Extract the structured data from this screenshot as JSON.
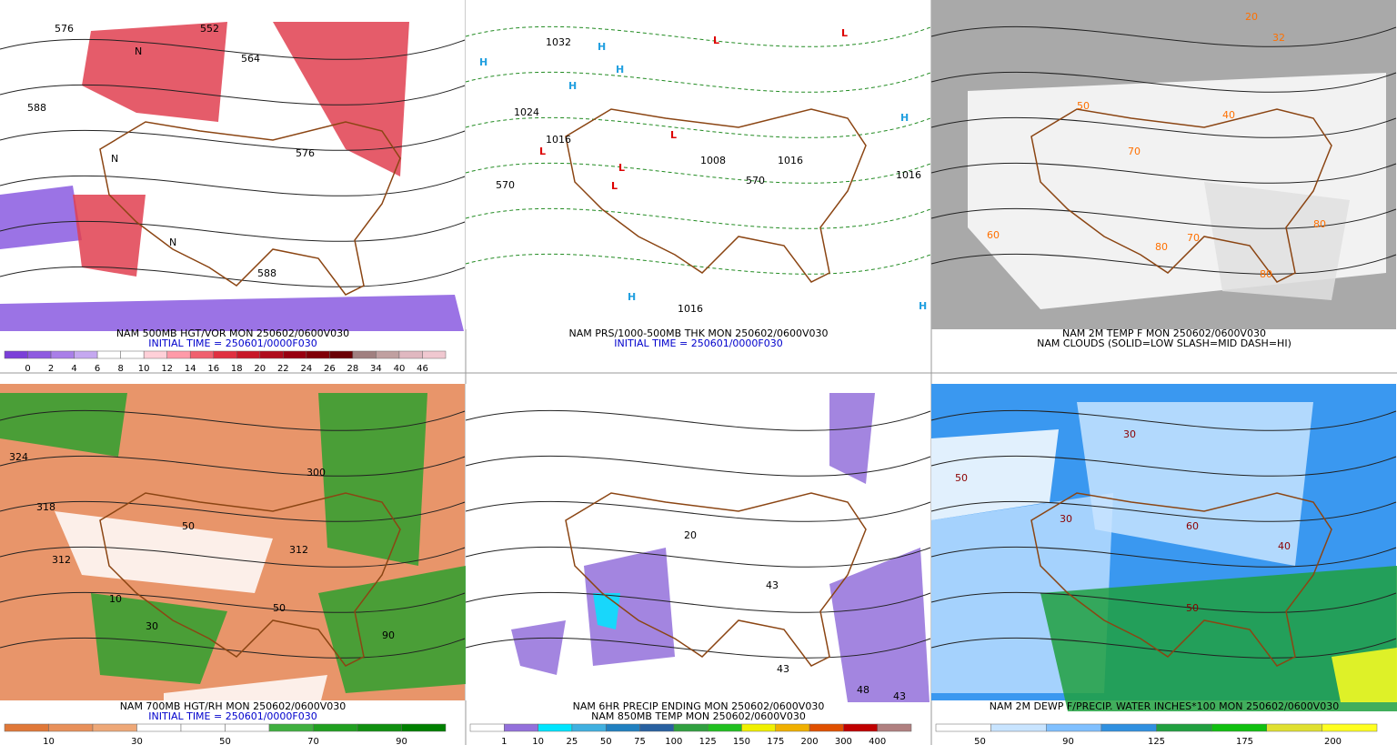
{
  "panels": [
    {
      "caption": [
        "NAM 500MB HGT/VOR MON 250602/0600V030",
        "INITIAL TIME = 250601/0000F030"
      ],
      "caption_colors": [
        "#000000",
        "#0000cc"
      ],
      "colorbar": {
        "labels": [
          "0",
          "2",
          "4",
          "6",
          "8",
          "10",
          "12",
          "14",
          "16",
          "18",
          "20",
          "22",
          "24",
          "26",
          "28",
          "34",
          "40",
          "46"
        ],
        "colors": [
          "#7b3fd8",
          "#8e5ae0",
          "#a97fe8",
          "#c5a8f0",
          "#ffffff",
          "#ffffff",
          "#ffd0d8",
          "#ff9aa8",
          "#f0606e",
          "#e03040",
          "#c81828",
          "#b00c1c",
          "#980010",
          "#800008",
          "#6a0004",
          "#a08080",
          "#c0a0a0",
          "#e0b8c0",
          "#f0c8d0"
        ]
      },
      "map_labels": [
        "576",
        "588",
        "564",
        "552",
        "576",
        "588",
        "N",
        "N",
        "N"
      ],
      "background": "#ffffff"
    },
    {
      "caption": [
        "NAM PRS/1000-500MB THK MON 250602/0600V030",
        "INITIAL TIME = 250601/0000F030"
      ],
      "caption_colors": [
        "#000000",
        "#0000cc"
      ],
      "map_labels": [
        "1032",
        "1024",
        "1016",
        "1008",
        "1016",
        "1016",
        "1016",
        "570",
        "570",
        "H",
        "H",
        "H",
        "H",
        "H",
        "H",
        "H",
        "L",
        "L",
        "L",
        "L",
        "L",
        "L"
      ],
      "background": "#ffffff"
    },
    {
      "caption": [
        "NAM 2M TEMP F MON 250602/0600V030",
        "NAM CLOUDS (SOLID=LOW SLASH=MID DASH=HI)"
      ],
      "caption_colors": [
        "#000000",
        "#000000"
      ],
      "map_labels": [
        "60",
        "70",
        "80",
        "70",
        "80",
        "80",
        "50",
        "40",
        "32",
        "20"
      ],
      "background": "#a9a9a9"
    },
    {
      "caption": [
        "NAM 700MB HGT/RH MON 250602/0600V030",
        "INITIAL TIME = 250601/0000F030"
      ],
      "caption_colors": [
        "#000000",
        "#0000cc"
      ],
      "colorbar": {
        "labels": [
          "10",
          "30",
          "50",
          "70",
          "90"
        ],
        "colors": [
          "#e07838",
          "#e8905a",
          "#eea878",
          "#ffffff",
          "#ffffff",
          "#ffffff",
          "#40b040",
          "#20a020",
          "#109010",
          "#008000"
        ]
      },
      "map_labels": [
        "324",
        "318",
        "312",
        "300",
        "312",
        "10",
        "30",
        "50",
        "90",
        "50"
      ],
      "background": "#e8956a"
    },
    {
      "caption": [
        "NAM 6HR PRECIP ENDING MON 250602/0600V030",
        "NAM 850MB TEMP MON 250602/0600V030"
      ],
      "caption_colors": [
        "#000000",
        "#000000"
      ],
      "colorbar": {
        "labels": [
          "1",
          "10",
          "25",
          "50",
          "75",
          "100",
          "125",
          "150",
          "175",
          "200",
          "300",
          "400"
        ],
        "colors": [
          "#ffffff",
          "#9370db",
          "#00e5ff",
          "#40b0e0",
          "#2080c0",
          "#2860a0",
          "#30a040",
          "#20c020",
          "#f0f000",
          "#f0b000",
          "#e05000",
          "#c00000",
          "#b08080"
        ]
      },
      "map_labels": [
        "43",
        "43",
        "43",
        "48",
        "20"
      ],
      "background": "#ffffff"
    },
    {
      "caption": [
        "NAM 2M DEWP F/PRECIP. WATER INCHES*100 MON 250602/0600V030"
      ],
      "caption_colors": [
        "#000000"
      ],
      "colorbar": {
        "labels": [
          "50",
          "90",
          "125",
          "175",
          "200"
        ],
        "colors": [
          "#ffffff",
          "#c8e4ff",
          "#80c0ff",
          "#3090e0",
          "#20a040",
          "#10c010",
          "#e0e030",
          "#ffff20"
        ]
      },
      "map_labels": [
        "50",
        "30",
        "40",
        "30",
        "60",
        "50"
      ],
      "background": "#3a98f0"
    }
  ]
}
